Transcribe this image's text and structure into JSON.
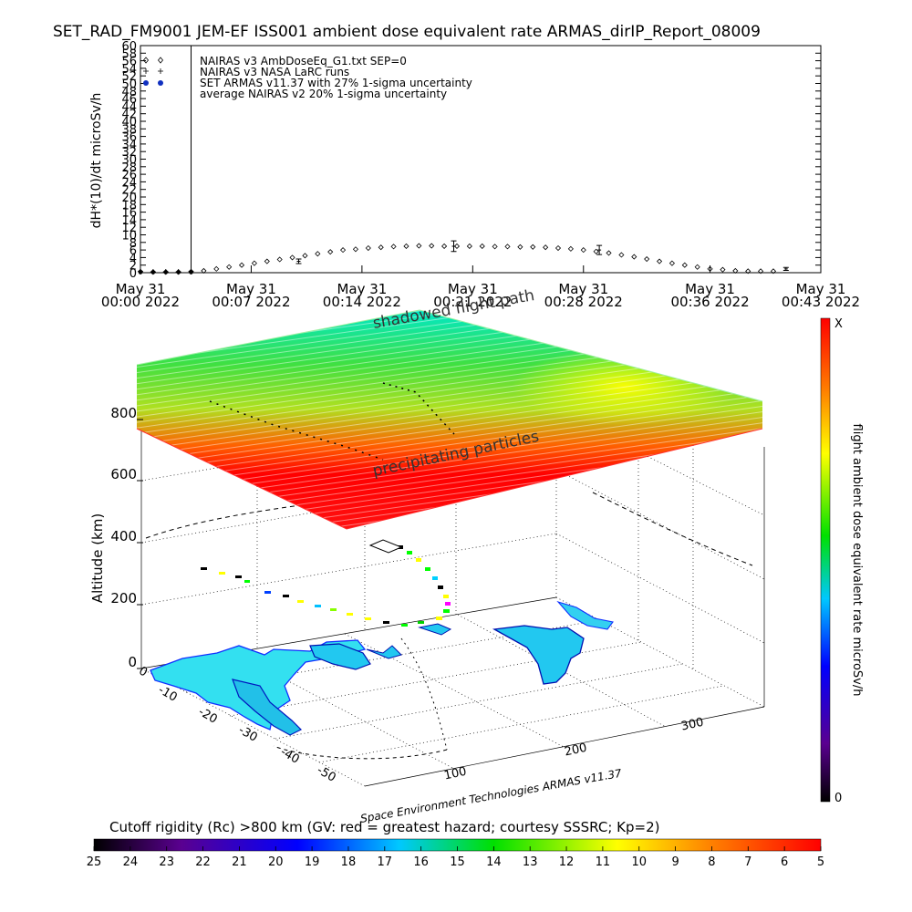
{
  "title": "SET_RAD_FM9001   JEM-EF ISS001 ambient dose equivalent rate ARMAS_dirIP_Report_08009",
  "chart_data": [
    {
      "type": "scatter",
      "ylabel": "dH*(10)/dt microSv/h",
      "ylim": [
        0,
        60
      ],
      "yticks": [
        0,
        2,
        4,
        6,
        8,
        10,
        12,
        14,
        16,
        18,
        20,
        22,
        24,
        26,
        28,
        30,
        32,
        34,
        36,
        38,
        40,
        42,
        44,
        46,
        48,
        50,
        52,
        54,
        56,
        58,
        60
      ],
      "xlim_minutes": [
        0,
        43
      ],
      "xticks": [
        {
          "t": 0,
          "line1": "May 31",
          "line2": "00:00  2022"
        },
        {
          "t": 7,
          "line1": "May 31",
          "line2": "00:07  2022"
        },
        {
          "t": 14,
          "line1": "May 31",
          "line2": "00:14  2022"
        },
        {
          "t": 21,
          "line1": "May 31",
          "line2": "00:21  2022"
        },
        {
          "t": 28,
          "line1": "May 31",
          "line2": "00:28  2022"
        },
        {
          "t": 36,
          "line1": "May 31",
          "line2": "00:36  2022"
        },
        {
          "t": 43,
          "line1": "May 31",
          "line2": "00:43  2022"
        }
      ],
      "legend": [
        "NAIRAS v3 AmbDoseEq_G1.txt SEP=0",
        "NAIRAS v3 NASA LaRC runs",
        "SET ARMAS v11.37 with 27% 1-sigma uncertainty",
        "average NAIRAS v2 20% 1-sigma uncertainty"
      ],
      "legend_placement": "top-left",
      "vertical_marker_t": 3.2,
      "series": [
        {
          "name": "NAIRAS v3 AmbDoseEq_G1.txt SEP=0",
          "marker": "diamond",
          "x": [
            0,
            0.8,
            1.6,
            2.4,
            3.2,
            4.0,
            4.8,
            5.6,
            6.4,
            7.2,
            8.0,
            8.8,
            9.6,
            10.4,
            11.2,
            12.0,
            12.8,
            13.6,
            14.4,
            15.2,
            16.0,
            16.8,
            17.6,
            18.4,
            19.2,
            20.0,
            20.8,
            21.6,
            22.4,
            23.2,
            24.0,
            24.8,
            25.6,
            26.4,
            27.2,
            28.0,
            28.8,
            29.6,
            30.4,
            31.2,
            32.0,
            32.8,
            33.6,
            34.4,
            35.2,
            36.0,
            36.8,
            37.6,
            38.4,
            39.2,
            40.0
          ],
          "y": [
            0.3,
            0.2,
            0.2,
            0.2,
            0.3,
            0.5,
            1.0,
            1.5,
            2.0,
            2.5,
            3.0,
            3.5,
            4.0,
            4.5,
            5.0,
            5.5,
            6.0,
            6.2,
            6.5,
            6.7,
            6.9,
            7.0,
            7.1,
            7.1,
            7.0,
            7.0,
            7.0,
            7.0,
            6.9,
            6.9,
            6.8,
            6.8,
            6.7,
            6.5,
            6.3,
            6.0,
            5.6,
            5.2,
            4.7,
            4.2,
            3.6,
            3.0,
            2.5,
            2.0,
            1.5,
            1.0,
            0.8,
            0.5,
            0.4,
            0.4,
            0.4
          ]
        },
        {
          "name": "NAIRAS v3 NASA LaRC runs",
          "marker": "plus",
          "x": [
            0,
            0.8,
            1.6,
            2.4,
            3.2
          ],
          "y": [
            0.3,
            0.2,
            0.2,
            0.2,
            0.3
          ]
        },
        {
          "name": "SET ARMAS v11.37 with 27% 1-sigma uncertainty",
          "marker": "filled-circle",
          "x": [
            0,
            0.8,
            1.6,
            2.4,
            3.2
          ],
          "y": [
            0.1,
            0.1,
            0.1,
            0.1,
            0.1
          ]
        },
        {
          "name": "average NAIRAS v2 20% 1-sigma uncertainty",
          "marker": "errorbar",
          "x": [
            10.0,
            19.8,
            29.0,
            40.8
          ],
          "y": [
            3.0,
            7.0,
            6.0,
            1.0
          ],
          "err": [
            0.6,
            1.4,
            1.2,
            0.4
          ]
        }
      ]
    },
    {
      "type": "3d-trajectory",
      "zlabel": "Altitude (km)",
      "zticks": [
        0,
        200,
        400,
        600,
        800
      ],
      "lat_ticks": [
        0,
        -10,
        -20,
        -30,
        -40,
        -50
      ],
      "lon_ticks": [
        100,
        200,
        300
      ],
      "colorbar_right": {
        "label": "flight ambient dose equivalent rate microSv/h",
        "top": "X",
        "bottom": "0"
      },
      "annotations": [
        "shadowed flight path",
        "precipitating particles"
      ],
      "credit": "Space Environment Technologies ARMAS v11.37",
      "cutoff_title": "Cutoff rigidity (Rc) >800 km (GV: red = greatest hazard; courtesy SSSRC; Kp=2)",
      "cutoff_colorbar_ticks": [
        25,
        24,
        23,
        22,
        21,
        20,
        19,
        18,
        17,
        16,
        15,
        14,
        13,
        12,
        11,
        10,
        9,
        8,
        7,
        6,
        5
      ]
    }
  ]
}
